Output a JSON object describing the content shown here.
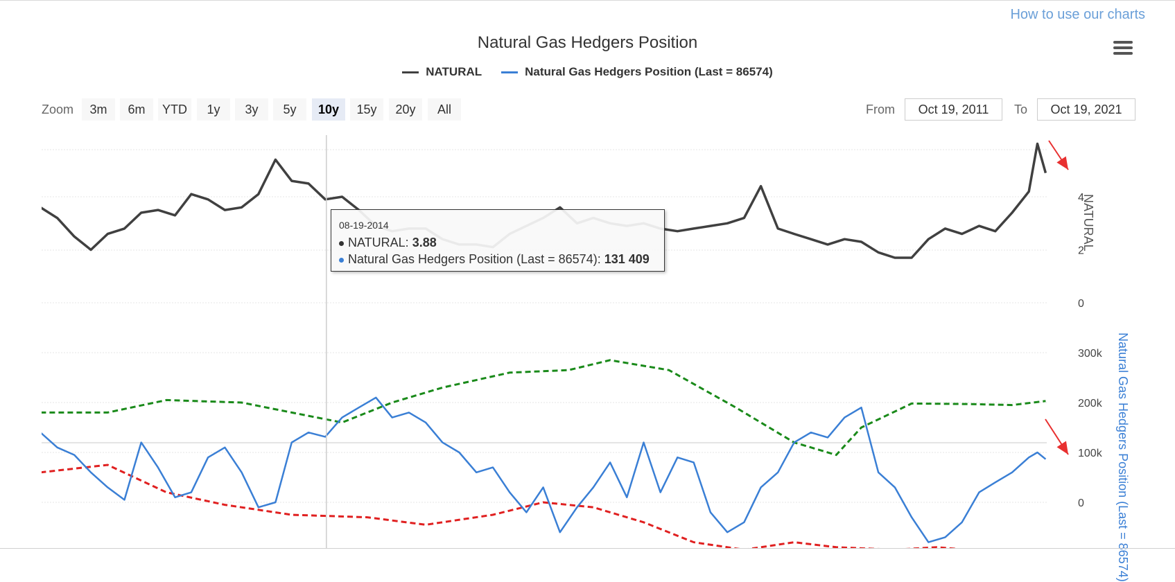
{
  "header": {
    "help_link": "How to use our charts",
    "title": "Natural Gas Hedgers Position",
    "menu_icon": "hamburger-menu-icon"
  },
  "legend": [
    {
      "label": "NATURAL",
      "color": "#404040"
    },
    {
      "label": "Natural Gas Hedgers Position (Last = 86574)",
      "color": "#3a7fd5"
    }
  ],
  "zoom": {
    "label": "Zoom",
    "buttons": [
      "3m",
      "6m",
      "YTD",
      "1y",
      "3y",
      "5y",
      "10y",
      "15y",
      "20y",
      "All"
    ],
    "active": "10y"
  },
  "range": {
    "from_label": "From",
    "from_value": "Oct 19, 2011",
    "to_label": "To",
    "to_value": "Oct 19, 2021"
  },
  "tooltip": {
    "date": "08-19-2014",
    "rows": [
      {
        "label": "NATURAL: ",
        "value": "3.88",
        "color": "#333333"
      },
      {
        "label": "Natural Gas Hedgers Position (Last = 86574): ",
        "value": "131 409",
        "color": "#3a7fd5"
      }
    ]
  },
  "chart_data": {
    "type": "line",
    "x_range": [
      "2011-10-19",
      "2021-10-19"
    ],
    "panels": [
      {
        "name": "price",
        "y_axis": {
          "title": "NATURAL",
          "ticks": [
            "0",
            "2",
            "4"
          ],
          "ylim": [
            0,
            6.2
          ]
        },
        "series": [
          {
            "name": "NATURAL",
            "color": "#404040",
            "x": [
              "2011-10",
              "2011-12",
              "2012-02",
              "2012-04",
              "2012-06",
              "2012-08",
              "2012-10",
              "2012-12",
              "2013-02",
              "2013-04",
              "2013-06",
              "2013-08",
              "2013-10",
              "2013-12",
              "2014-02",
              "2014-04",
              "2014-06",
              "2014-08",
              "2014-10",
              "2014-12",
              "2015-02",
              "2015-04",
              "2015-06",
              "2015-08",
              "2015-10",
              "2015-12",
              "2016-02",
              "2016-04",
              "2016-06",
              "2016-08",
              "2016-10",
              "2016-12",
              "2017-02",
              "2017-04",
              "2017-06",
              "2017-08",
              "2017-10",
              "2017-12",
              "2018-02",
              "2018-04",
              "2018-06",
              "2018-08",
              "2018-10",
              "2018-12",
              "2019-02",
              "2019-04",
              "2019-06",
              "2019-08",
              "2019-10",
              "2019-12",
              "2020-02",
              "2020-04",
              "2020-06",
              "2020-08",
              "2020-10",
              "2020-12",
              "2021-02",
              "2021-04",
              "2021-06",
              "2021-08",
              "2021-09",
              "2021-10"
            ],
            "values": [
              3.6,
              3.2,
              2.5,
              2.0,
              2.6,
              2.8,
              3.4,
              3.5,
              3.3,
              4.1,
              3.9,
              3.5,
              3.6,
              4.1,
              5.4,
              4.6,
              4.5,
              3.9,
              4.0,
              3.5,
              2.9,
              2.7,
              2.8,
              2.8,
              2.4,
              2.2,
              2.2,
              2.1,
              2.6,
              2.9,
              3.2,
              3.6,
              3.0,
              3.2,
              3.0,
              2.9,
              3.0,
              2.8,
              2.7,
              2.8,
              2.9,
              3.0,
              3.2,
              4.4,
              2.8,
              2.6,
              2.4,
              2.2,
              2.4,
              2.3,
              1.9,
              1.7,
              1.7,
              2.4,
              2.8,
              2.6,
              2.9,
              2.7,
              3.4,
              4.2,
              6.0,
              4.9
            ]
          }
        ]
      },
      {
        "name": "positions",
        "y_axis": {
          "title": "Natural Gas Hedgers Position (Last = 86574)",
          "ticks": [
            "0",
            "100k",
            "200k",
            "300k"
          ],
          "ylim": [
            -100000,
            310000
          ]
        },
        "series": [
          {
            "name": "Natural Gas Hedgers Position (Last = 86574)",
            "color": "#3a7fd5",
            "x": [
              "2011-10",
              "2011-12",
              "2012-02",
              "2012-04",
              "2012-06",
              "2012-08",
              "2012-10",
              "2012-12",
              "2013-02",
              "2013-04",
              "2013-06",
              "2013-08",
              "2013-10",
              "2013-12",
              "2014-02",
              "2014-04",
              "2014-06",
              "2014-08",
              "2014-10",
              "2014-12",
              "2015-02",
              "2015-04",
              "2015-06",
              "2015-08",
              "2015-10",
              "2015-12",
              "2016-02",
              "2016-04",
              "2016-06",
              "2016-08",
              "2016-10",
              "2016-12",
              "2017-02",
              "2017-04",
              "2017-06",
              "2017-08",
              "2017-10",
              "2017-12",
              "2018-02",
              "2018-04",
              "2018-06",
              "2018-08",
              "2018-10",
              "2018-12",
              "2019-02",
              "2019-04",
              "2019-06",
              "2019-08",
              "2019-10",
              "2019-12",
              "2020-02",
              "2020-04",
              "2020-06",
              "2020-08",
              "2020-10",
              "2020-12",
              "2021-02",
              "2021-04",
              "2021-06",
              "2021-08",
              "2021-09",
              "2021-10"
            ],
            "values": [
              140000,
              110000,
              95000,
              60000,
              30000,
              5000,
              120000,
              70000,
              10000,
              20000,
              90000,
              110000,
              60000,
              -10000,
              0,
              120000,
              140000,
              131409,
              170000,
              190000,
              210000,
              170000,
              180000,
              160000,
              120000,
              100000,
              60000,
              70000,
              20000,
              -20000,
              30000,
              -60000,
              -10000,
              30000,
              80000,
              10000,
              120000,
              20000,
              90000,
              80000,
              -20000,
              -60000,
              -40000,
              30000,
              60000,
              120000,
              140000,
              130000,
              170000,
              190000,
              60000,
              30000,
              -30000,
              -80000,
              -70000,
              -40000,
              20000,
              40000,
              60000,
              90000,
              100000,
              86574
            ]
          },
          {
            "name": "",
            "color": "#1a8a1a",
            "style": "dashed",
            "x": [
              "2011-10",
              "2012-06",
              "2013-01",
              "2013-10",
              "2014-04",
              "2014-10",
              "2015-04",
              "2015-10",
              "2016-06",
              "2017-01",
              "2017-06",
              "2018-01",
              "2018-09",
              "2019-04",
              "2019-09",
              "2019-12",
              "2020-06",
              "2021-01",
              "2021-06",
              "2021-10"
            ],
            "values": [
              180000,
              180000,
              205000,
              200000,
              180000,
              160000,
              200000,
              230000,
              260000,
              265000,
              285000,
              265000,
              190000,
              120000,
              95000,
              150000,
              198000,
              197000,
              195000,
              203000
            ]
          },
          {
            "name": "",
            "color": "#e02020",
            "style": "dashed",
            "x": [
              "2011-10",
              "2012-06",
              "2013-01",
              "2013-08",
              "2014-04",
              "2015-01",
              "2015-08",
              "2016-04",
              "2016-10",
              "2017-04",
              "2017-10",
              "2018-04",
              "2018-10",
              "2019-04",
              "2019-09",
              "2020-04",
              "2020-09",
              "2021-04",
              "2021-10"
            ],
            "values": [
              60000,
              75000,
              20000,
              -5000,
              -25000,
              -30000,
              -45000,
              -25000,
              0,
              -10000,
              -40000,
              -80000,
              -95000,
              -80000,
              -90000,
              -95000,
              -90000,
              -100000,
              -105000
            ]
          }
        ]
      }
    ],
    "crosshair_date": "2014-08-19",
    "annotations": [
      "red-arrow-top-right",
      "red-arrow-bottom-right"
    ],
    "grid": true,
    "legend_position": "top-center"
  }
}
